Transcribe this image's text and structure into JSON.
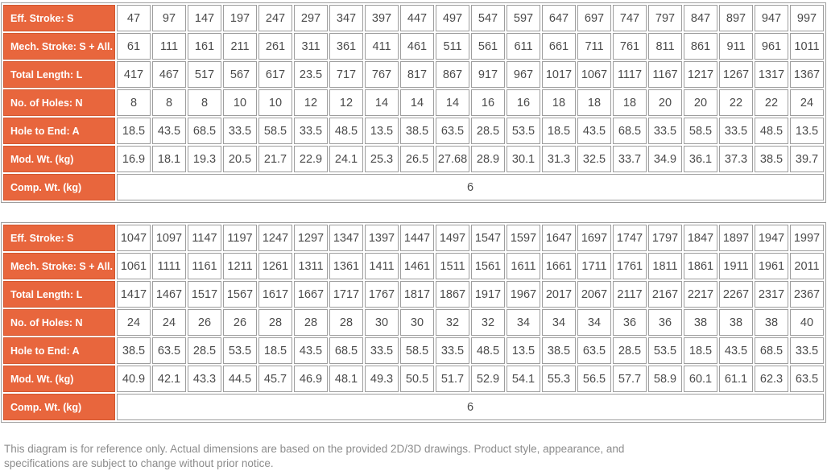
{
  "colors": {
    "header_bg": "#E8663D",
    "header_border": "#D2572F",
    "header_text": "#FFFFFF",
    "grid_border": "#9E9E9E",
    "value_text": "#4B4B4B",
    "footer_text": "#8C8C8C",
    "page_bg": "#FFFFFF"
  },
  "tables": [
    {
      "name": "spec-table-upper",
      "columns": 20,
      "rows": [
        {
          "label": "Eff. Stroke: S",
          "values": [
            "47",
            "97",
            "147",
            "197",
            "247",
            "297",
            "347",
            "397",
            "447",
            "497",
            "547",
            "597",
            "647",
            "697",
            "747",
            "797",
            "847",
            "897",
            "947",
            "997"
          ]
        },
        {
          "label": "Mech. Stroke: S + All.",
          "values": [
            "61",
            "111",
            "161",
            "211",
            "261",
            "311",
            "361",
            "411",
            "461",
            "511",
            "561",
            "611",
            "661",
            "711",
            "761",
            "811",
            "861",
            "911",
            "961",
            "1011"
          ]
        },
        {
          "label": "Total Length: L",
          "values": [
            "417",
            "467",
            "517",
            "567",
            "617",
            "23.5",
            "717",
            "767",
            "817",
            "867",
            "917",
            "967",
            "1017",
            "1067",
            "1117",
            "1167",
            "1217",
            "1267",
            "1317",
            "1367"
          ]
        },
        {
          "label": "No. of Holes: N",
          "values": [
            "8",
            "8",
            "8",
            "10",
            "10",
            "12",
            "12",
            "14",
            "14",
            "14",
            "16",
            "16",
            "18",
            "18",
            "18",
            "20",
            "20",
            "22",
            "22",
            "24"
          ]
        },
        {
          "label": "Hole to End: A",
          "values": [
            "18.5",
            "43.5",
            "68.5",
            "33.5",
            "58.5",
            "33.5",
            "48.5",
            "13.5",
            "38.5",
            "63.5",
            "28.5",
            "53.5",
            "18.5",
            "43.5",
            "68.5",
            "33.5",
            "58.5",
            "33.5",
            "48.5",
            "13.5"
          ]
        },
        {
          "label": "Mod. Wt. (kg)",
          "values": [
            "16.9",
            "18.1",
            "19.3",
            "20.5",
            "21.7",
            "22.9",
            "24.1",
            "25.3",
            "26.5",
            "27.68",
            "28.9",
            "30.1",
            "31.3",
            "32.5",
            "33.7",
            "34.9",
            "36.1",
            "37.3",
            "38.5",
            "39.7"
          ]
        },
        {
          "label": "Comp. Wt. (kg)",
          "merged": true,
          "values": [
            "6"
          ]
        }
      ]
    },
    {
      "name": "spec-table-lower",
      "columns": 20,
      "rows": [
        {
          "label": "Eff. Stroke: S",
          "values": [
            "1047",
            "1097",
            "1147",
            "1197",
            "1247",
            "1297",
            "1347",
            "1397",
            "1447",
            "1497",
            "1547",
            "1597",
            "1647",
            "1697",
            "1747",
            "1797",
            "1847",
            "1897",
            "1947",
            "1997"
          ]
        },
        {
          "label": "Mech. Stroke: S + All.",
          "values": [
            "1061",
            "1111",
            "1161",
            "1211",
            "1261",
            "1311",
            "1361",
            "1411",
            "1461",
            "1511",
            "1561",
            "1611",
            "1661",
            "1711",
            "1761",
            "1811",
            "1861",
            "1911",
            "1961",
            "2011"
          ]
        },
        {
          "label": "Total Length: L",
          "values": [
            "1417",
            "1467",
            "1517",
            "1567",
            "1617",
            "1667",
            "1717",
            "1767",
            "1817",
            "1867",
            "1917",
            "1967",
            "2017",
            "2067",
            "2117",
            "2167",
            "2217",
            "2267",
            "2317",
            "2367"
          ]
        },
        {
          "label": "No. of Holes: N",
          "values": [
            "24",
            "24",
            "26",
            "26",
            "28",
            "28",
            "28",
            "30",
            "30",
            "32",
            "32",
            "34",
            "34",
            "34",
            "36",
            "36",
            "38",
            "38",
            "38",
            "40"
          ]
        },
        {
          "label": "Hole to End: A",
          "values": [
            "38.5",
            "63.5",
            "28.5",
            "53.5",
            "18.5",
            "43.5",
            "68.5",
            "33.5",
            "58.5",
            "33.5",
            "48.5",
            "13.5",
            "38.5",
            "63.5",
            "28.5",
            "53.5",
            "18.5",
            "43.5",
            "68.5",
            "33.5"
          ]
        },
        {
          "label": "Mod. Wt. (kg)",
          "values": [
            "40.9",
            "42.1",
            "43.3",
            "44.5",
            "45.7",
            "46.9",
            "48.1",
            "49.3",
            "50.5",
            "51.7",
            "52.9",
            "54.1",
            "55.3",
            "56.5",
            "57.7",
            "58.9",
            "60.1",
            "61.1",
            "62.3",
            "63.5"
          ]
        },
        {
          "label": "Comp. Wt. (kg)",
          "merged": true,
          "values": [
            "6"
          ]
        }
      ]
    }
  ],
  "footer": {
    "text": "This diagram is for reference only. Actual dimensions are based on the provided 2D/3D drawings. Product style, appearance, and specifications are subject to change without prior notice."
  }
}
